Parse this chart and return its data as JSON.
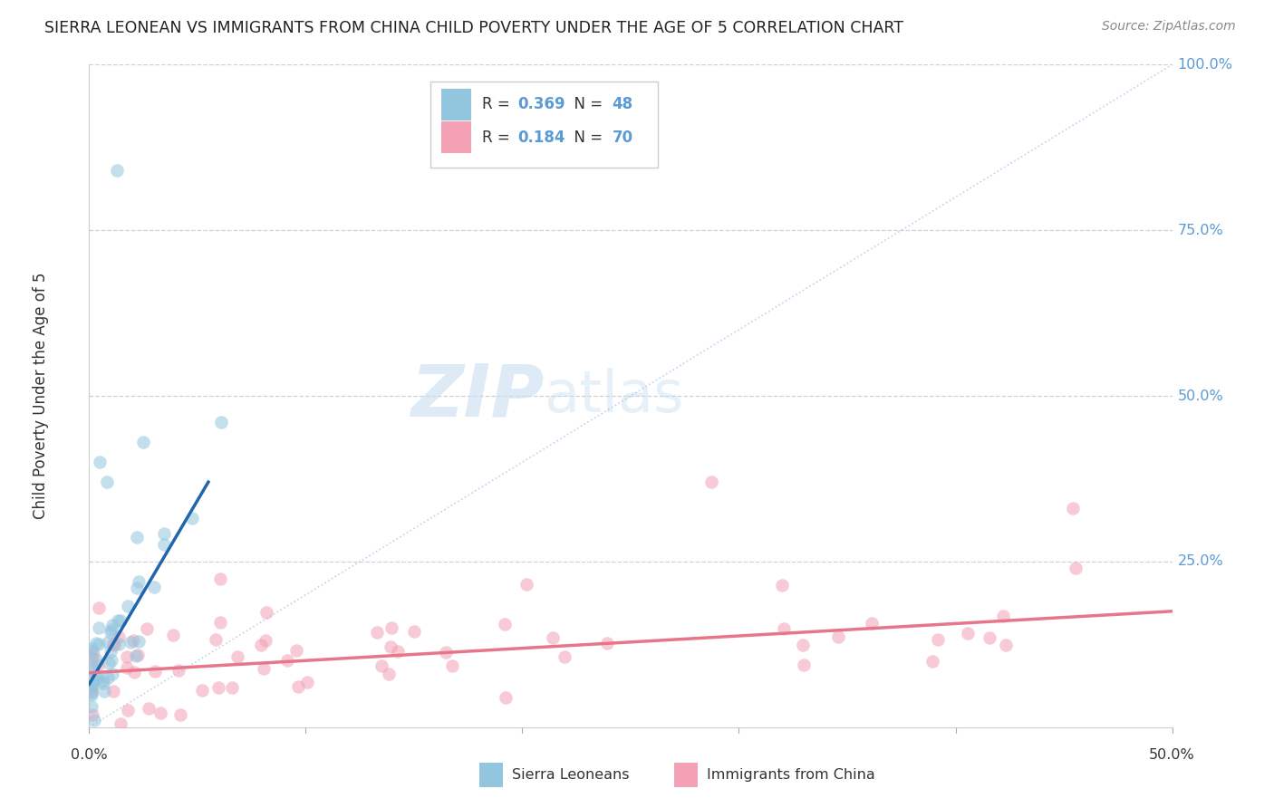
{
  "title": "SIERRA LEONEAN VS IMMIGRANTS FROM CHINA CHILD POVERTY UNDER THE AGE OF 5 CORRELATION CHART",
  "source": "Source: ZipAtlas.com",
  "ylabel": "Child Poverty Under the Age of 5",
  "xlim": [
    0.0,
    0.5
  ],
  "ylim": [
    0.0,
    1.0
  ],
  "xticks": [
    0.0,
    0.1,
    0.2,
    0.3,
    0.4,
    0.5
  ],
  "yticks": [
    0.25,
    0.5,
    0.75,
    1.0
  ],
  "ytick_labels": [
    "25.0%",
    "50.0%",
    "75.0%",
    "100.0%"
  ],
  "sierra_color": "#92c5de",
  "china_color": "#f4a0b5",
  "sierra_line_color": "#2166ac",
  "china_line_color": "#e8768a",
  "sierra_line": {
    "x0": 0.0,
    "y0": 0.065,
    "x1": 0.055,
    "y1": 0.37
  },
  "china_line": {
    "x0": 0.0,
    "y0": 0.082,
    "x1": 0.5,
    "y1": 0.175
  },
  "diag_color": "#b0c8e8",
  "watermark_zip": "ZIP",
  "watermark_atlas": "atlas",
  "background_color": "#ffffff",
  "grid_color": "#cccccc",
  "ytick_color": "#5b9bd5",
  "legend_R1": "0.369",
  "legend_N1": "48",
  "legend_R2": "0.184",
  "legend_N2": "70"
}
